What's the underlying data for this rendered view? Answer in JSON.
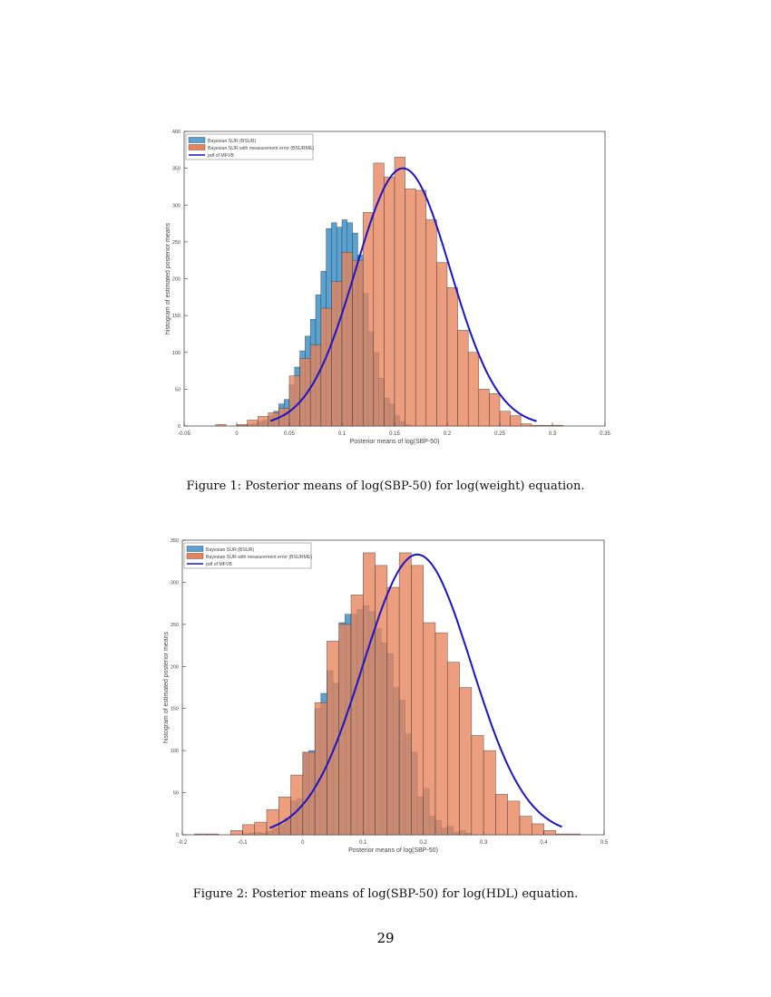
{
  "colors": {
    "blue": "#5aa2d2",
    "orange": "#e8835a",
    "pdf": "#1a14c8"
  },
  "page_number": "29",
  "chart_data": [
    {
      "type": "bar",
      "title": "",
      "caption": "Figure 1: Posterior means of log(SBP-50) for log(weight) equation.",
      "xlabel": "Posterior means of log(SBP-50)",
      "ylabel": "histogram of estimated posterior means",
      "xlim": [
        -0.05,
        0.35
      ],
      "ylim": [
        0,
        400
      ],
      "xticks": [
        "-0.05",
        "0",
        "0.05",
        "0.1",
        "0.15",
        "0.2",
        "0.25",
        "0.3",
        "0.35"
      ],
      "yticks": [
        "0",
        "50",
        "100",
        "150",
        "200",
        "250",
        "300",
        "350",
        "400"
      ],
      "legend": [
        "Bayesian SUR (BSUR)",
        "Bayesian SUR with measurement error (BSURME)",
        "pdf of MFVB"
      ],
      "legend_position": "top-left",
      "series": [
        {
          "name": "BSUR",
          "bin_start": 0.0,
          "bin_width": 0.005,
          "values": [
            1,
            1,
            2,
            3,
            6,
            8,
            14,
            20,
            30,
            36,
            56,
            80,
            102,
            122,
            145,
            178,
            210,
            268,
            276,
            270,
            280,
            276,
            262,
            232,
            180,
            128,
            100,
            65,
            38,
            30,
            14,
            6,
            2
          ]
        },
        {
          "name": "BSURME",
          "bin_start": -0.02,
          "bin_width": 0.01,
          "values": [
            2,
            0,
            2,
            8,
            13,
            18,
            24,
            68,
            92,
            110,
            160,
            196,
            236,
            225,
            290,
            357,
            338,
            365,
            322,
            320,
            280,
            222,
            188,
            130,
            100,
            50,
            44,
            20,
            14,
            3,
            1,
            1,
            1
          ]
        }
      ],
      "pdf": {
        "name": "MFVB",
        "mean": 0.158,
        "sd": 0.045,
        "peak": 350,
        "range": [
          0.032,
          0.285
        ]
      }
    },
    {
      "type": "bar",
      "title": "",
      "caption": "Figure 2: Posterior means of log(SBP-50) for log(HDL) equation.",
      "xlabel": "Posterior means of log(SBP-50)",
      "ylabel": "histogram of estimated posterior means",
      "xlim": [
        -0.2,
        0.5
      ],
      "ylim": [
        0,
        350
      ],
      "xticks": [
        "-0.2",
        "-0.1",
        "0",
        "0.1",
        "0.2",
        "0.3",
        "0.4",
        "0.5"
      ],
      "yticks": [
        "0",
        "50",
        "100",
        "150",
        "200",
        "250",
        "300",
        "350"
      ],
      "legend": [
        "Bayesian SUR (BSUR)",
        "Bayesian SUR with measurement error (BSURME)",
        "pdf of MFVB"
      ],
      "legend_position": "top-left",
      "series": [
        {
          "name": "BSUR",
          "bin_start": -0.1,
          "bin_width": 0.01,
          "values": [
            1,
            2,
            3,
            2,
            4,
            8,
            12,
            20,
            40,
            43,
            98,
            100,
            150,
            168,
            195,
            180,
            252,
            262,
            262,
            268,
            272,
            265,
            245,
            228,
            215,
            175,
            160,
            120,
            98,
            45,
            55,
            22,
            17,
            8,
            10,
            3,
            5,
            2
          ]
        },
        {
          "name": "BSURME",
          "bin_start": -0.18,
          "bin_width": 0.02,
          "values": [
            1,
            1,
            0,
            5,
            12,
            15,
            30,
            45,
            71,
            98,
            157,
            230,
            250,
            285,
            335,
            320,
            294,
            335,
            320,
            252,
            240,
            205,
            175,
            118,
            100,
            48,
            40,
            22,
            13,
            5,
            1,
            1
          ]
        }
      ],
      "pdf": {
        "name": "MFVB",
        "mean": 0.19,
        "sd": 0.09,
        "peak": 333,
        "range": [
          -0.055,
          0.43
        ]
      }
    }
  ]
}
